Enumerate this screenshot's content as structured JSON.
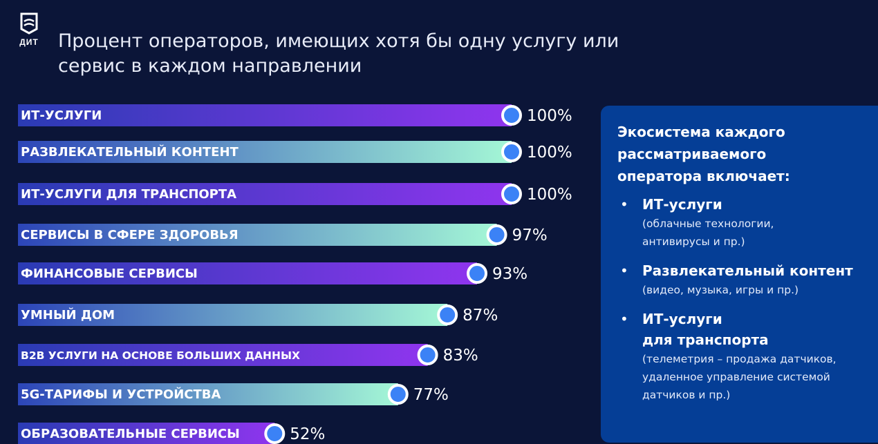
{
  "logo": {
    "text": "ДИТ"
  },
  "title": "Процент операторов, имеющих хотя бы одну услугу или сервис в каждом направлении",
  "colors": {
    "background": "#0b1538",
    "bar_purple_start": "#2a3bb4",
    "bar_purple_end": "#8f35ee",
    "bar_mint_start": "#2c45b8",
    "bar_mint_end": "#a4f7d6",
    "marker_fill": "#3b82f6",
    "marker_ring": "#ffffff",
    "panel": "#053e96"
  },
  "chart_data": {
    "type": "bar",
    "orientation": "horizontal",
    "categories": [
      "ИТ-УСЛУГИ",
      "РАЗВЛЕКАТЕЛЬНЫЙ КОНТЕНТ",
      "ИТ-УСЛУГИ ДЛЯ ТРАНСПОРТА",
      "СЕРВИСЫ В СФЕРЕ ЗДОРОВЬЯ",
      "ФИНАНСОВЫЕ СЕРВИСЫ",
      "УМНЫЙ ДОМ",
      "B2B УСЛУГИ НА ОСНОВЕ БОЛЬШИХ ДАННЫХ",
      "5G-ТАРИФЫ И УСТРОЙСТВА",
      "ОБРАЗОВАТЕЛЬНЫЕ СЕРВИСЫ"
    ],
    "values": [
      100,
      100,
      100,
      97,
      93,
      87,
      83,
      77,
      52
    ],
    "value_labels": [
      "100%",
      "100%",
      "100%",
      "97%",
      "93%",
      "87%",
      "83%",
      "77%",
      "52%"
    ],
    "bar_styles": [
      "purple",
      "mint",
      "purple",
      "mint",
      "purple",
      "mint",
      "purple",
      "mint",
      "purple"
    ],
    "xlim": [
      0,
      100
    ],
    "title": "Процент операторов, имеющих хотя бы одну услугу или сервис в каждом направлении",
    "xlabel": "",
    "ylabel": "",
    "grid": false,
    "legend": "none"
  },
  "panel": {
    "heading": "Экосистема каждого рассматриваемого оператора включает:",
    "bullet": "•",
    "items": [
      {
        "title_lines": [
          "ИТ-услуги"
        ],
        "desc_lines": [
          "(облачные технологии,",
          "антивирусы и пр.)"
        ]
      },
      {
        "title_lines": [
          "Развлекательный контент"
        ],
        "desc_lines": [
          "(видео, музыка, игры и пр.)"
        ]
      },
      {
        "title_lines": [
          "ИТ-услуги",
          "для транспорта"
        ],
        "desc_lines": [
          "(телеметрия – продажа датчиков,",
          "удаленное управление системой",
          "датчиков и пр.)"
        ]
      }
    ]
  }
}
